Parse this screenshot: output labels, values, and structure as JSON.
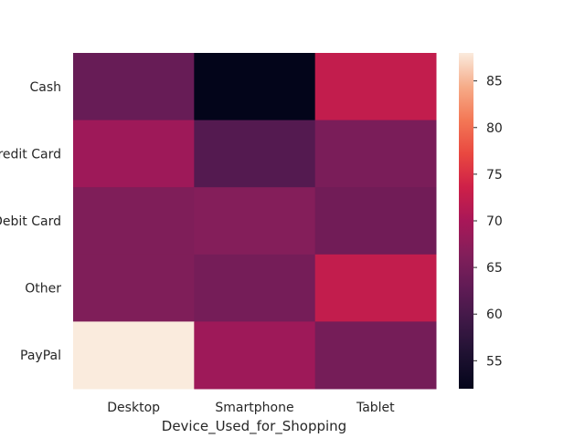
{
  "chart_data": {
    "type": "heatmap",
    "title": "",
    "xlabel": "Device_Used_for_Shopping",
    "ylabel": "",
    "x_categories": [
      "Desktop",
      "Smartphone",
      "Tablet"
    ],
    "y_categories": [
      "Cash",
      "Credit Card",
      "Debit Card",
      "Other",
      "PayPal"
    ],
    "values": [
      [
        63.5,
        52,
        72.5
      ],
      [
        69,
        61.5,
        65.5
      ],
      [
        66,
        66.5,
        64.5
      ],
      [
        66,
        65,
        72.5
      ],
      [
        88,
        69,
        65
      ]
    ],
    "colorbar": {
      "range": [
        52,
        88
      ],
      "ticks": [
        55,
        60,
        65,
        70,
        75,
        80,
        85
      ],
      "colormap": "rocket"
    }
  }
}
